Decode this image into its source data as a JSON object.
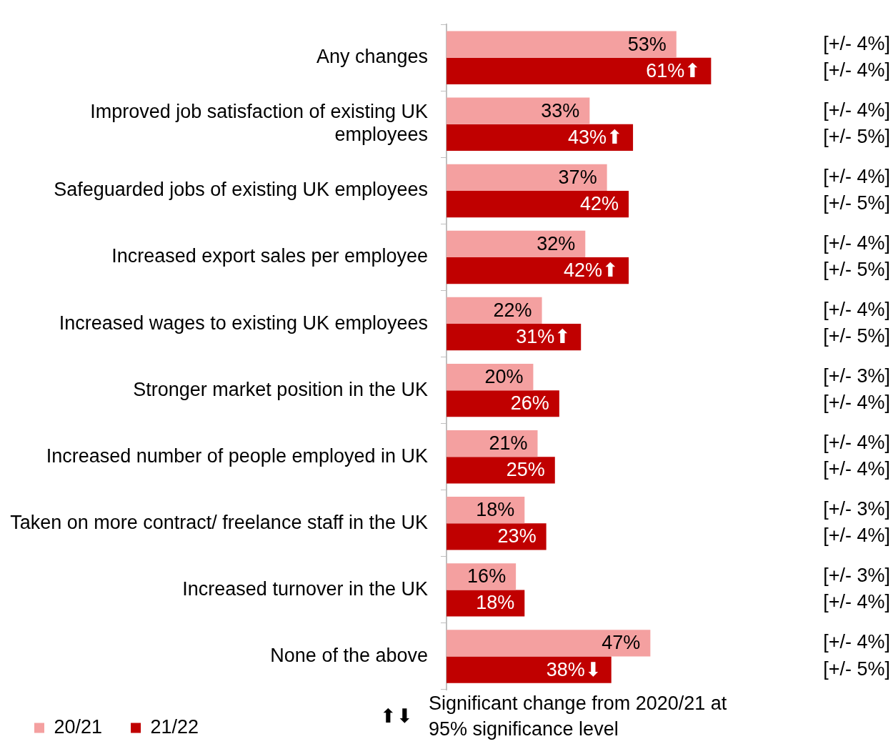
{
  "chart_data": {
    "type": "bar",
    "orientation": "horizontal",
    "categories": [
      "Any changes",
      "Improved job satisfaction of existing UK employees",
      "Safeguarded jobs of existing UK employees",
      "Increased export sales per employee",
      "Increased wages to existing UK employees",
      "Stronger market position in the UK",
      "Increased number of people employed in UK",
      "Taken on more contract/ freelance staff in the UK",
      "Increased turnover in the UK",
      "None of the above"
    ],
    "series": [
      {
        "name": "20/21",
        "color": "#f4a0a0",
        "values": [
          53,
          33,
          37,
          32,
          22,
          20,
          21,
          18,
          16,
          47
        ],
        "value_labels": [
          "53%",
          "33%",
          "37%",
          "32%",
          "22%",
          "20%",
          "21%",
          "18%",
          "16%",
          "47%"
        ]
      },
      {
        "name": "21/22",
        "color": "#c00000",
        "values": [
          61,
          43,
          42,
          42,
          31,
          26,
          25,
          23,
          18,
          38
        ],
        "value_labels": [
          "61%⬆",
          "43%⬆",
          "42%",
          "42%⬆",
          "31%⬆",
          "26%",
          "25%",
          "23%",
          "18%",
          "38%⬇"
        ]
      }
    ],
    "tick_labels": "y",
    "legend": "bottom",
    "annotations": [
      "[+/- 4%]",
      "[+/- 4%]",
      "[+/- 4%]",
      "[+/- 5%]",
      "[+/- 4%]",
      "[+/- 5%]",
      "[+/- 4%]",
      "[+/- 5%]",
      "[+/- 4%]",
      "[+/- 5%]",
      "[+/- 3%]",
      "[+/- 4%]",
      "[+/- 4%]",
      "[+/- 4%]",
      "[+/- 3%]",
      "[+/- 4%]",
      "[+/- 3%]",
      "[+/- 4%]",
      "[+/- 4%]",
      "[+/- 5%]",
      "⬆⬇",
      "Significant change from 2020/21 at 95% significance level"
    ]
  }
}
